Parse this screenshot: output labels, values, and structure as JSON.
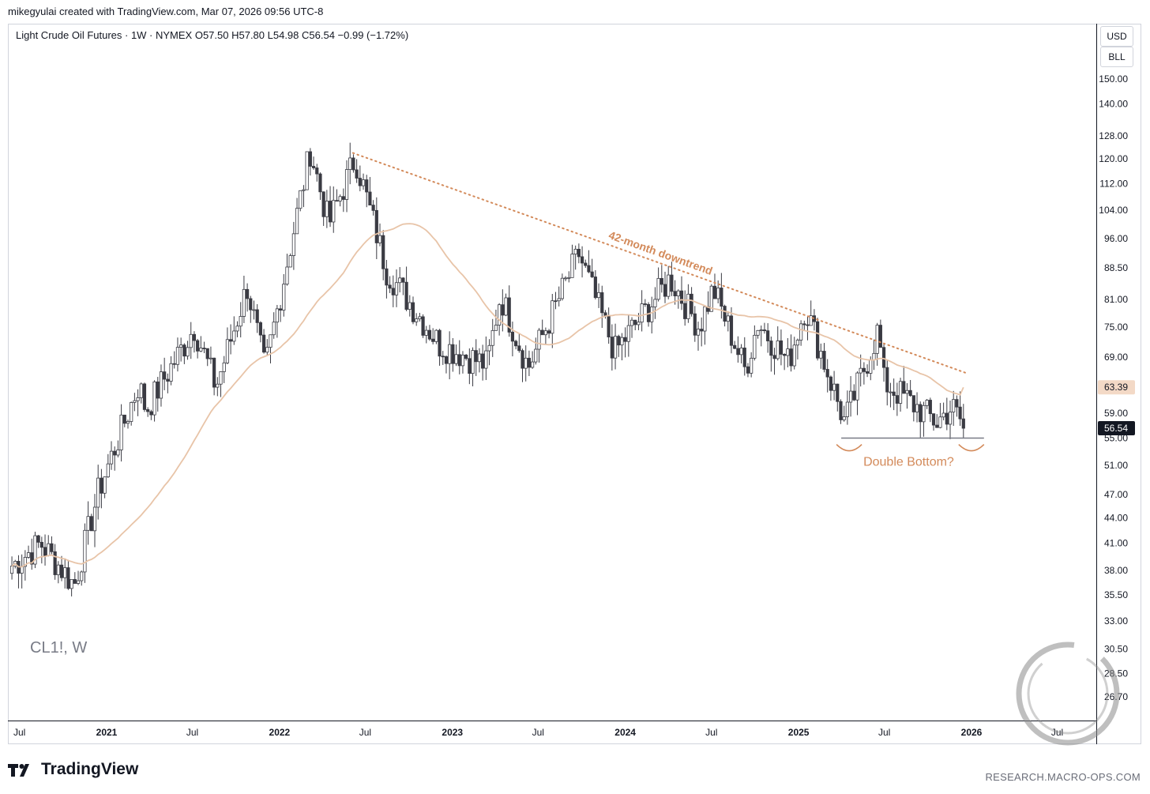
{
  "header": {
    "byline": "mikegyulai created with TradingView.com, Mar 07, 2026 09:56 UTC-8"
  },
  "legend": {
    "text": "Light Crude Oil Futures · 1W · NYMEX  O57.50  H57.80  L54.98  C56.54  −0.99 (−1.72%)"
  },
  "badges": {
    "currency": "USD",
    "unit": "BLL"
  },
  "symbol_label": "CL1!, W",
  "footer": {
    "brand": "TradingView",
    "site": "RESEARCH.MACRO-OPS.COM"
  },
  "colors": {
    "up_candle": "#ffffff",
    "down_candle": "#3a3b43",
    "ma": "#e8c4a8",
    "annotation": "#d38a5a",
    "last_price_bg": "#131722",
    "ma_label_bg": "#f3d9c6"
  },
  "chart_data": {
    "type": "candlestick",
    "instrument": "Light Crude Oil Futures",
    "interval": "1W",
    "y_scale": "log",
    "ylim": [
      24.5,
      165
    ],
    "y_ticks": [
      "150.00",
      "140.00",
      "128.00",
      "120.00",
      "112.00",
      "104.00",
      "96.00",
      "88.50",
      "81.00",
      "75.00",
      "69.00",
      "63.39",
      "59.00",
      "56.54",
      "55.00",
      "51.00",
      "47.00",
      "44.00",
      "41.00",
      "38.00",
      "35.50",
      "33.00",
      "30.50",
      "28.50",
      "26.70"
    ],
    "x_ticks": [
      "Jul",
      "2021",
      "Jul",
      "2022",
      "Jul",
      "2023",
      "Jul",
      "2024",
      "Jul",
      "2025",
      "Jul",
      "2026",
      "Jul"
    ],
    "x_tick_years": [
      "2021",
      "2022",
      "2023",
      "2024",
      "2025",
      "2026"
    ],
    "ohlc_anchors": [
      {
        "date": "2020-06-15",
        "close": 38.5
      },
      {
        "date": "2020-08-15",
        "close": 41.0
      },
      {
        "date": "2020-10-25",
        "close": 36.5
      },
      {
        "date": "2020-12-15",
        "close": 47.5
      },
      {
        "date": "2021-03-10",
        "close": 64.0
      },
      {
        "date": "2021-03-25",
        "close": 59.5
      },
      {
        "date": "2021-07-05",
        "close": 75.0
      },
      {
        "date": "2021-08-20",
        "close": 63.5
      },
      {
        "date": "2021-10-25",
        "close": 84.0
      },
      {
        "date": "2021-12-01",
        "close": 66.5
      },
      {
        "date": "2022-03-07",
        "close": 123.0
      },
      {
        "date": "2022-04-15",
        "close": 100.0
      },
      {
        "date": "2022-06-10",
        "close": 120.5
      },
      {
        "date": "2022-08-15",
        "close": 88.0
      },
      {
        "date": "2022-12-05",
        "close": 71.5
      },
      {
        "date": "2023-03-15",
        "close": 67.5
      },
      {
        "date": "2023-04-12",
        "close": 82.0
      },
      {
        "date": "2023-06-10",
        "close": 67.0
      },
      {
        "date": "2023-09-25",
        "close": 92.0
      },
      {
        "date": "2023-12-10",
        "close": 70.0
      },
      {
        "date": "2024-04-05",
        "close": 86.0
      },
      {
        "date": "2024-06-05",
        "close": 75.0
      },
      {
        "date": "2024-07-05",
        "close": 83.5
      },
      {
        "date": "2024-09-10",
        "close": 66.5
      },
      {
        "date": "2024-10-07",
        "close": 76.0
      },
      {
        "date": "2024-12-10",
        "close": 68.0
      },
      {
        "date": "2025-01-15",
        "close": 79.5
      },
      {
        "date": "2025-04-08",
        "close": 57.5
      },
      {
        "date": "2025-06-20",
        "close": 75.0
      },
      {
        "date": "2025-06-27",
        "close": 64.5
      },
      {
        "date": "2025-10-20",
        "close": 57.5
      },
      {
        "date": "2025-11-20",
        "close": 60.0
      },
      {
        "date": "2025-12-20",
        "close": 56.54
      }
    ],
    "moving_average": {
      "label": "63.39",
      "last": 63.39
    },
    "last_price": {
      "label": "56.54",
      "value": 56.54
    },
    "annotations": {
      "trendline": {
        "label": "42-month downtrend",
        "style": "dotted",
        "from": {
          "date": "2022-06-05",
          "value": 122.0
        },
        "to": {
          "date": "2025-12-20",
          "value": 66.0
        }
      },
      "support_line": {
        "from": {
          "date": "2025-04-01",
          "value": 55.0
        },
        "to": {
          "date": "2025-12-25",
          "value": 55.0
        }
      },
      "pattern_label": "Double Bottom?"
    }
  }
}
